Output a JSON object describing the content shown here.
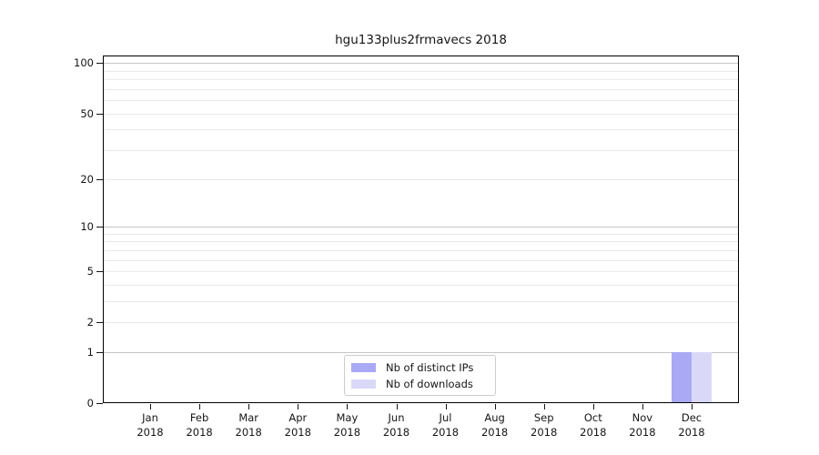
{
  "title": "hgu133plus2frmavecs 2018",
  "legend": {
    "items": [
      {
        "label": "Nb of distinct IPs",
        "swatch": "periwinkle"
      },
      {
        "label": "Nb of downloads",
        "swatch": "lavender"
      }
    ]
  },
  "chart_data": {
    "type": "bar",
    "title": "hgu133plus2frmavecs 2018",
    "categories": [
      "Jan 2018",
      "Feb 2018",
      "Mar 2018",
      "Apr 2018",
      "May 2018",
      "Jun 2018",
      "Jul 2018",
      "Aug 2018",
      "Sep 2018",
      "Oct 2018",
      "Nov 2018",
      "Dec 2018"
    ],
    "series": [
      {
        "name": "Nb of distinct IPs",
        "color": "#a9a9f5",
        "values": [
          0,
          0,
          0,
          0,
          0,
          0,
          0,
          0,
          0,
          0,
          0,
          1
        ]
      },
      {
        "name": "Nb of downloads",
        "color": "#d9d9f7",
        "values": [
          0,
          0,
          0,
          0,
          0,
          0,
          0,
          0,
          0,
          0,
          0,
          1
        ]
      }
    ],
    "yscale": "log1p",
    "ylim": [
      0,
      100
    ],
    "y_tick_labels": [
      0,
      1,
      2,
      5,
      10,
      20,
      50,
      100
    ],
    "y_gridlines_power": [
      1,
      10,
      100
    ],
    "y_gridlines_minor": [
      2,
      3,
      4,
      5,
      6,
      7,
      8,
      9,
      20,
      30,
      40,
      50,
      60,
      70,
      80,
      90
    ],
    "grid": true,
    "legend_position": "bottom-center",
    "colors": {
      "grid_power": "#c6c6c6",
      "grid_minor": "#e9e9e9",
      "axis": "#000000",
      "text": "#151515",
      "background": "#ffffff"
    }
  }
}
